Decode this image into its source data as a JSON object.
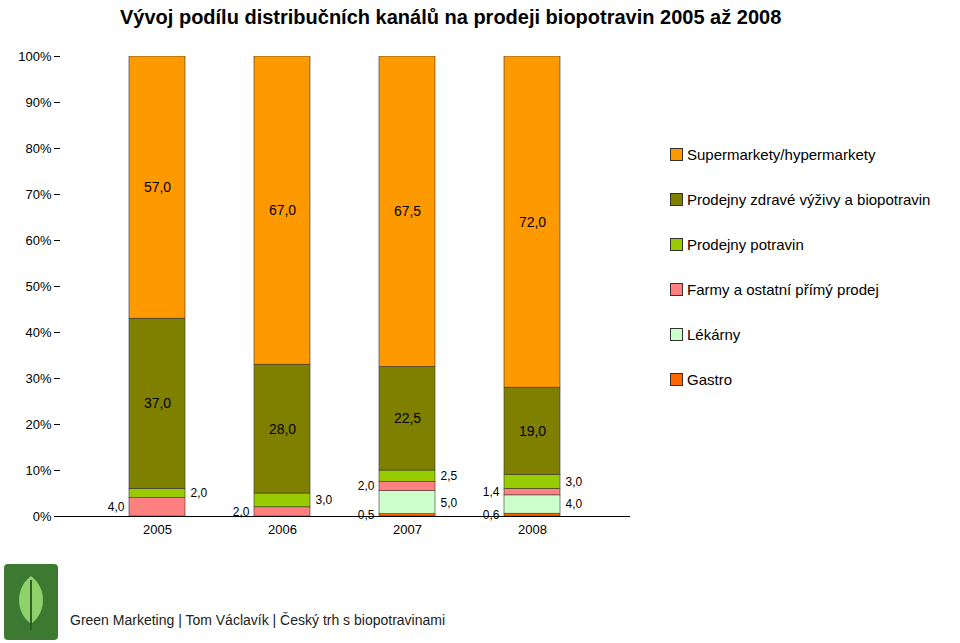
{
  "chart_data": {
    "type": "bar",
    "title": "Vývoj podílu distribučních kanálů na prodeji biopotravin 2005 až 2008",
    "caption": "Green Marketing | Tom Václavík | Český trh s biopotravinami",
    "stacked": true,
    "data_labels": true,
    "legend": "right",
    "grid": false,
    "categories": [
      "2005",
      "2006",
      "2007",
      "2008"
    ],
    "ylim": [
      0,
      100
    ],
    "yticks": [
      {
        "value": 0,
        "label": "0%"
      },
      {
        "value": 10,
        "label": "10%"
      },
      {
        "value": 20,
        "label": "20%"
      },
      {
        "value": 30,
        "label": "30%"
      },
      {
        "value": 40,
        "label": "40%"
      },
      {
        "value": 50,
        "label": "50%"
      },
      {
        "value": 60,
        "label": "60%"
      },
      {
        "value": 70,
        "label": "70%"
      },
      {
        "value": 80,
        "label": "80%"
      },
      {
        "value": 90,
        "label": "90%"
      },
      {
        "value": 100,
        "label": "100%"
      }
    ],
    "series": [
      {
        "name": "Supermarkety/hypermarkety",
        "color": "#ff9900",
        "values": [
          57,
          67,
          67.5,
          72
        ],
        "value_labels": [
          "57,0",
          "67,0",
          "67,5",
          "72,0"
        ]
      },
      {
        "name": "Prodejny zdravé výživy a biopotravin",
        "color": "#808000",
        "values": [
          37,
          28,
          22.5,
          19
        ],
        "value_labels": [
          "37,0",
          "28,0",
          "22,5",
          "19,0"
        ]
      },
      {
        "name": "Prodejny potravin",
        "color": "#99cc00",
        "values": [
          2,
          3,
          2.5,
          3
        ],
        "value_labels": [
          "2,0",
          "3,0",
          "2,5",
          "3,0"
        ]
      },
      {
        "name": "Farmy a ostatní přímý prodej",
        "color": "#ff8080",
        "values": [
          4,
          2,
          2,
          1.4
        ],
        "value_labels": [
          "4,0",
          "2,0",
          "2,0",
          "1,4"
        ]
      },
      {
        "name": "Lékárny",
        "color": "#ccffcc",
        "values": [
          0,
          0,
          5,
          4
        ],
        "value_labels": [
          null,
          null,
          "5,0",
          "4,0"
        ]
      },
      {
        "name": "Gastro",
        "color": "#ff6600",
        "values": [
          0,
          0,
          0.5,
          0.6
        ],
        "value_labels": [
          null,
          null,
          "0,5",
          "0,6"
        ]
      }
    ]
  }
}
